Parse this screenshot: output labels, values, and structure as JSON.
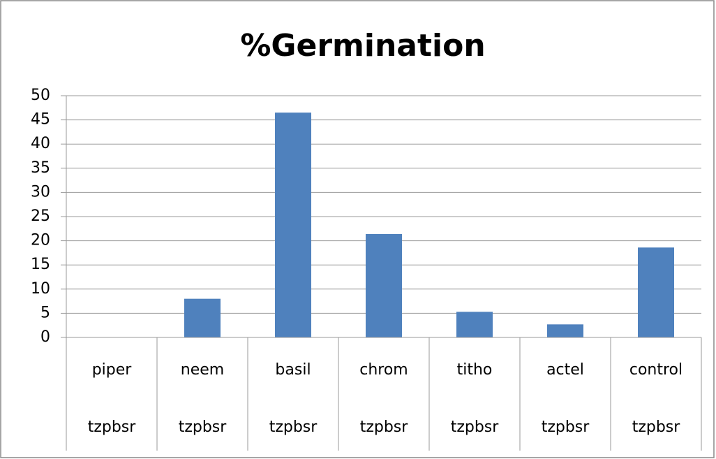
{
  "chart_data": {
    "type": "bar",
    "title": "%Germination",
    "categories": [
      "piper",
      "neem",
      "basil",
      "chrom",
      "titho",
      "actel",
      "control"
    ],
    "subcategories": [
      "tzpbsr",
      "tzpbsr",
      "tzpbsr",
      "tzpbsr",
      "tzpbsr",
      "tzpbsr",
      "tzpbsr"
    ],
    "values": [
      0,
      8,
      46.5,
      21.4,
      5.3,
      2.7,
      18.6
    ],
    "color": "#4f81bd",
    "ylim": [
      0,
      50
    ],
    "yticks": [
      0,
      5,
      10,
      15,
      20,
      25,
      30,
      35,
      40,
      45,
      50
    ],
    "grid": true
  }
}
